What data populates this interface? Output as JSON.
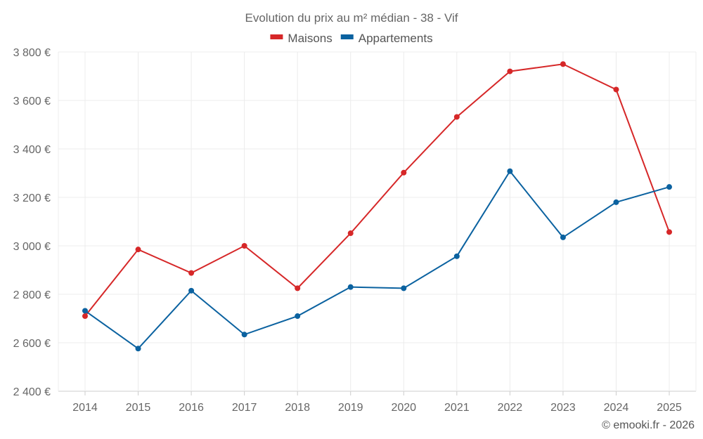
{
  "chart_data": {
    "type": "line",
    "title": "Evolution du prix au m² médian - 38 - Vif",
    "categories": [
      "2014",
      "2015",
      "2016",
      "2017",
      "2018",
      "2019",
      "2020",
      "2021",
      "2022",
      "2023",
      "2024",
      "2025"
    ],
    "series": [
      {
        "name": "Maisons",
        "color": "#d62728",
        "values": [
          2710,
          2985,
          2888,
          3000,
          2825,
          3052,
          3302,
          3532,
          3720,
          3750,
          3645,
          3057
        ]
      },
      {
        "name": "Appartements",
        "color": "#0b62a0",
        "values": [
          2732,
          2576,
          2815,
          2634,
          2710,
          2830,
          2825,
          2957,
          3308,
          3035,
          3180,
          3243
        ]
      }
    ],
    "ylim": [
      2400,
      3800
    ],
    "yticks": [
      2400,
      2600,
      2800,
      3000,
      3200,
      3400,
      3600,
      3800
    ],
    "ytick_labels": [
      "2 400 €",
      "2 600 €",
      "2 800 €",
      "3 000 €",
      "3 200 €",
      "3 400 €",
      "3 600 €",
      "3 800 €"
    ],
    "legend_position": "top",
    "grid": true,
    "xlabel": "",
    "ylabel": ""
  },
  "footer": "© emooki.fr - 2026"
}
